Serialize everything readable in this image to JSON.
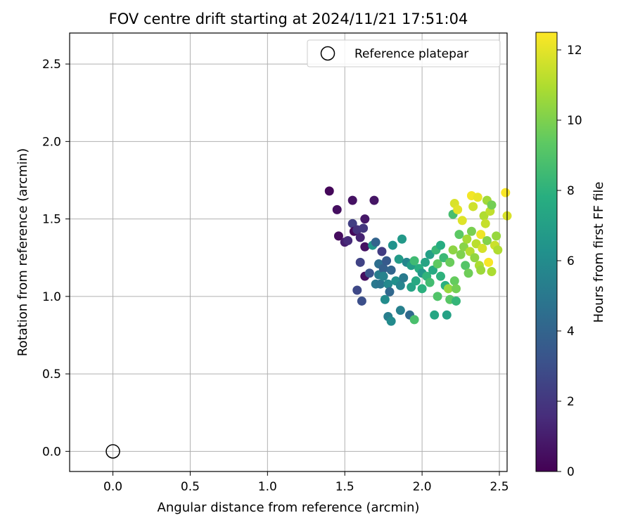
{
  "chart_data": {
    "type": "scatter",
    "title": "FOV centre drift starting at 2024/11/21 17:51:04",
    "xlabel": "Angular distance from reference (arcmin)",
    "ylabel": "Rotation from reference (arcmin)",
    "xlim": [
      -0.28,
      2.55
    ],
    "ylim": [
      -0.13,
      2.7
    ],
    "xticks": [
      "0.0",
      "0.5",
      "1.0",
      "1.5",
      "2.0",
      "2.5"
    ],
    "yticks": [
      "0.0",
      "0.5",
      "1.0",
      "1.5",
      "2.0",
      "2.5"
    ],
    "grid": true,
    "legend": {
      "position": "top-right",
      "entries": [
        "Reference platepar"
      ]
    },
    "reference": {
      "x": 0.0,
      "y": 0.0
    },
    "colorbar": {
      "label": "Hours from first FF file",
      "range": [
        0,
        12.5
      ],
      "ticks": [
        "0",
        "2",
        "4",
        "6",
        "8",
        "10",
        "12"
      ],
      "colormap": "viridis"
    },
    "points": [
      {
        "x": 1.4,
        "y": 1.68,
        "c": 0.2
      },
      {
        "x": 1.45,
        "y": 1.56,
        "c": 0.5
      },
      {
        "x": 1.46,
        "y": 1.39,
        "c": 0.4
      },
      {
        "x": 1.5,
        "y": 1.35,
        "c": 1.0
      },
      {
        "x": 1.52,
        "y": 1.36,
        "c": 1.5
      },
      {
        "x": 1.55,
        "y": 1.62,
        "c": 0.6
      },
      {
        "x": 1.55,
        "y": 1.47,
        "c": 2.3
      },
      {
        "x": 1.56,
        "y": 1.42,
        "c": 0.3
      },
      {
        "x": 1.58,
        "y": 1.43,
        "c": 1.8
      },
      {
        "x": 1.6,
        "y": 1.38,
        "c": 1.2
      },
      {
        "x": 1.62,
        "y": 1.44,
        "c": 2.0
      },
      {
        "x": 1.63,
        "y": 1.5,
        "c": 0.8
      },
      {
        "x": 1.63,
        "y": 1.32,
        "c": 0.6
      },
      {
        "x": 1.58,
        "y": 1.04,
        "c": 2.7
      },
      {
        "x": 1.6,
        "y": 1.22,
        "c": 2.5
      },
      {
        "x": 1.61,
        "y": 0.97,
        "c": 3.0
      },
      {
        "x": 1.63,
        "y": 1.13,
        "c": 0.5
      },
      {
        "x": 1.66,
        "y": 1.15,
        "c": 3.2
      },
      {
        "x": 1.68,
        "y": 1.33,
        "c": 6.5
      },
      {
        "x": 1.69,
        "y": 1.62,
        "c": 0.7
      },
      {
        "x": 1.7,
        "y": 1.35,
        "c": 4.0
      },
      {
        "x": 1.7,
        "y": 1.08,
        "c": 5.0
      },
      {
        "x": 1.72,
        "y": 1.21,
        "c": 4.5
      },
      {
        "x": 1.72,
        "y": 1.14,
        "c": 5.2
      },
      {
        "x": 1.73,
        "y": 1.08,
        "c": 4.8
      },
      {
        "x": 1.74,
        "y": 1.29,
        "c": 2.2
      },
      {
        "x": 1.75,
        "y": 1.18,
        "c": 3.8
      },
      {
        "x": 1.75,
        "y": 1.13,
        "c": 5.5
      },
      {
        "x": 1.76,
        "y": 0.98,
        "c": 6.0
      },
      {
        "x": 1.77,
        "y": 1.23,
        "c": 3.5
      },
      {
        "x": 1.78,
        "y": 1.08,
        "c": 5.8
      },
      {
        "x": 1.78,
        "y": 0.87,
        "c": 5.3
      },
      {
        "x": 1.79,
        "y": 1.03,
        "c": 4.2
      },
      {
        "x": 1.8,
        "y": 0.84,
        "c": 5.9
      },
      {
        "x": 1.8,
        "y": 1.17,
        "c": 4.1
      },
      {
        "x": 1.81,
        "y": 1.33,
        "c": 6.3
      },
      {
        "x": 1.83,
        "y": 1.1,
        "c": 6.2
      },
      {
        "x": 1.85,
        "y": 1.24,
        "c": 6.8
      },
      {
        "x": 1.86,
        "y": 1.07,
        "c": 5.6
      },
      {
        "x": 1.86,
        "y": 0.91,
        "c": 5.4
      },
      {
        "x": 1.87,
        "y": 1.37,
        "c": 6.7
      },
      {
        "x": 1.88,
        "y": 1.12,
        "c": 5.1
      },
      {
        "x": 1.9,
        "y": 1.22,
        "c": 5.7
      },
      {
        "x": 1.92,
        "y": 0.88,
        "c": 4.3
      },
      {
        "x": 1.93,
        "y": 1.06,
        "c": 7.2
      },
      {
        "x": 1.93,
        "y": 1.2,
        "c": 6.9
      },
      {
        "x": 1.95,
        "y": 1.23,
        "c": 8.5
      },
      {
        "x": 1.95,
        "y": 0.85,
        "c": 8.8
      },
      {
        "x": 1.96,
        "y": 1.1,
        "c": 7.5
      },
      {
        "x": 1.98,
        "y": 1.18,
        "c": 7.8
      },
      {
        "x": 2.0,
        "y": 1.15,
        "c": 6.6
      },
      {
        "x": 2.0,
        "y": 1.05,
        "c": 7.9
      },
      {
        "x": 2.02,
        "y": 1.22,
        "c": 7.3
      },
      {
        "x": 2.03,
        "y": 1.13,
        "c": 8.1
      },
      {
        "x": 2.05,
        "y": 1.27,
        "c": 7.0
      },
      {
        "x": 2.05,
        "y": 1.09,
        "c": 8.6
      },
      {
        "x": 2.07,
        "y": 1.17,
        "c": 7.6
      },
      {
        "x": 2.08,
        "y": 0.88,
        "c": 7.4
      },
      {
        "x": 2.09,
        "y": 1.3,
        "c": 8.3
      },
      {
        "x": 2.1,
        "y": 1.0,
        "c": 9.0
      },
      {
        "x": 2.1,
        "y": 1.21,
        "c": 9.4
      },
      {
        "x": 2.12,
        "y": 1.33,
        "c": 7.7
      },
      {
        "x": 2.12,
        "y": 1.13,
        "c": 8.0
      },
      {
        "x": 2.14,
        "y": 1.25,
        "c": 8.4
      },
      {
        "x": 2.15,
        "y": 1.07,
        "c": 7.9
      },
      {
        "x": 2.16,
        "y": 0.88,
        "c": 7.1
      },
      {
        "x": 2.17,
        "y": 1.05,
        "c": 10.5
      },
      {
        "x": 2.18,
        "y": 0.98,
        "c": 9.2
      },
      {
        "x": 2.18,
        "y": 1.22,
        "c": 9.6
      },
      {
        "x": 2.2,
        "y": 1.53,
        "c": 8.7
      },
      {
        "x": 2.2,
        "y": 1.3,
        "c": 10.3
      },
      {
        "x": 2.21,
        "y": 1.1,
        "c": 9.5
      },
      {
        "x": 2.21,
        "y": 1.6,
        "c": 11.8
      },
      {
        "x": 2.22,
        "y": 0.97,
        "c": 8.2
      },
      {
        "x": 2.22,
        "y": 1.05,
        "c": 9.8
      },
      {
        "x": 2.23,
        "y": 1.56,
        "c": 12.0
      },
      {
        "x": 2.24,
        "y": 1.4,
        "c": 9.3
      },
      {
        "x": 2.25,
        "y": 1.27,
        "c": 10.0
      },
      {
        "x": 2.26,
        "y": 1.49,
        "c": 11.9
      },
      {
        "x": 2.27,
        "y": 1.32,
        "c": 10.2
      },
      {
        "x": 2.28,
        "y": 1.2,
        "c": 9.1
      },
      {
        "x": 2.29,
        "y": 1.37,
        "c": 10.8
      },
      {
        "x": 2.3,
        "y": 1.15,
        "c": 9.7
      },
      {
        "x": 2.31,
        "y": 1.29,
        "c": 11.1
      },
      {
        "x": 2.32,
        "y": 1.42,
        "c": 9.9
      },
      {
        "x": 2.32,
        "y": 1.65,
        "c": 12.3
      },
      {
        "x": 2.33,
        "y": 1.58,
        "c": 11.6
      },
      {
        "x": 2.34,
        "y": 1.25,
        "c": 10.4
      },
      {
        "x": 2.35,
        "y": 1.34,
        "c": 11.2
      },
      {
        "x": 2.36,
        "y": 1.64,
        "c": 12.1
      },
      {
        "x": 2.37,
        "y": 1.2,
        "c": 10.9
      },
      {
        "x": 2.38,
        "y": 1.4,
        "c": 12.2
      },
      {
        "x": 2.38,
        "y": 1.17,
        "c": 10.6
      },
      {
        "x": 2.39,
        "y": 1.31,
        "c": 11.7
      },
      {
        "x": 2.4,
        "y": 1.52,
        "c": 11.0
      },
      {
        "x": 2.41,
        "y": 1.47,
        "c": 11.4
      },
      {
        "x": 2.42,
        "y": 1.62,
        "c": 10.7
      },
      {
        "x": 2.42,
        "y": 1.36,
        "c": 10.1
      },
      {
        "x": 2.43,
        "y": 1.22,
        "c": 12.4
      },
      {
        "x": 2.44,
        "y": 1.55,
        "c": 11.3
      },
      {
        "x": 2.45,
        "y": 1.16,
        "c": 10.9
      },
      {
        "x": 2.45,
        "y": 1.59,
        "c": 9.8
      },
      {
        "x": 2.47,
        "y": 1.33,
        "c": 11.5
      },
      {
        "x": 2.48,
        "y": 1.39,
        "c": 10.5
      },
      {
        "x": 2.49,
        "y": 1.3,
        "c": 11.0
      },
      {
        "x": 2.54,
        "y": 1.67,
        "c": 12.4
      },
      {
        "x": 2.55,
        "y": 1.52,
        "c": 11.8
      }
    ]
  }
}
